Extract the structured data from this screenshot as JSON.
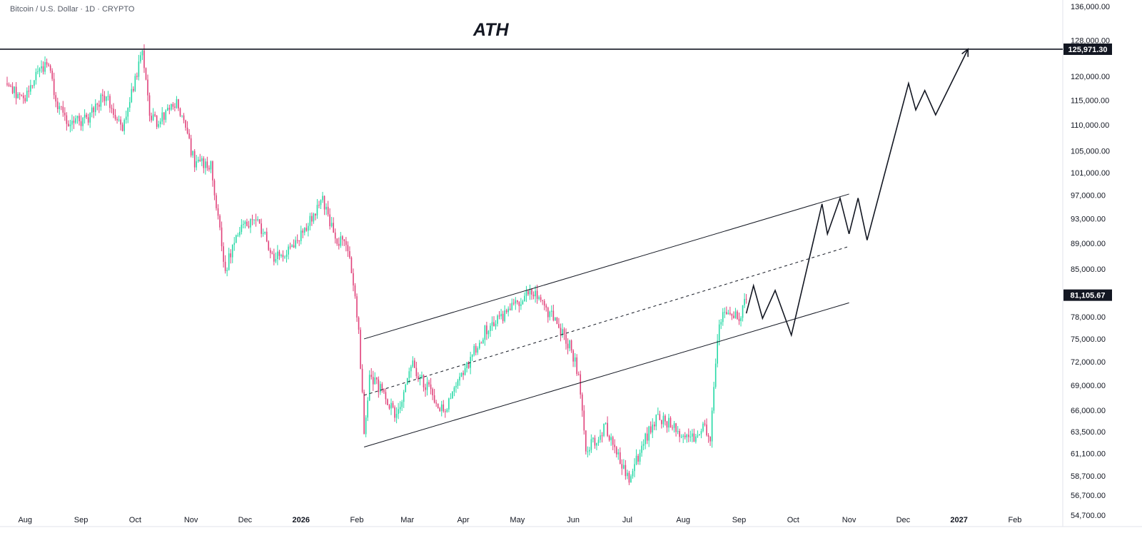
{
  "header": {
    "title": "Bitcoin / U.S. Dollar · 1D · CRYPTO"
  },
  "annotations": {
    "ath_label": "ATH"
  },
  "colors": {
    "up": "#26d9a6",
    "down": "#e0427a",
    "line": "#131722",
    "axis_border": "#e0e3eb",
    "background": "#ffffff"
  },
  "chart_data": {
    "type": "candlestick",
    "title": "",
    "grid": false,
    "y_ticks": [
      "136,000.00",
      "128,000.00",
      "120,000.00",
      "115,000.00",
      "110,000.00",
      "105,000.00",
      "101,000.00",
      "97,000.00",
      "93,000.00",
      "89,000.00",
      "85,000.00",
      "78,000.00",
      "75,000.00",
      "72,000.00",
      "69,000.00",
      "66,000.00",
      "63,500.00",
      "61,100.00",
      "58,700.00",
      "56,700.00",
      "54,700.00"
    ],
    "y_tick_values": [
      136000,
      128000,
      120000,
      115000,
      110000,
      105000,
      101000,
      97000,
      93000,
      89000,
      85000,
      78000,
      75000,
      72000,
      69000,
      66000,
      63500,
      61100,
      58700,
      56700,
      54700
    ],
    "ylim": [
      53000,
      138000
    ],
    "y_scale": "log",
    "x_ticks": [
      {
        "label": "Aug",
        "date": "2025-08-01",
        "bold": false
      },
      {
        "label": "Sep",
        "date": "2025-09-01",
        "bold": false
      },
      {
        "label": "Oct",
        "date": "2025-10-01",
        "bold": false
      },
      {
        "label": "Nov",
        "date": "2025-11-01",
        "bold": false
      },
      {
        "label": "Dec",
        "date": "2025-12-01",
        "bold": false
      },
      {
        "label": "2026",
        "date": "2026-01-01",
        "bold": true
      },
      {
        "label": "Feb",
        "date": "2026-02-01",
        "bold": false
      },
      {
        "label": "Mar",
        "date": "2026-03-01",
        "bold": false
      },
      {
        "label": "Apr",
        "date": "2026-04-01",
        "bold": false
      },
      {
        "label": "May",
        "date": "2026-05-01",
        "bold": false
      },
      {
        "label": "Jun",
        "date": "2026-06-01",
        "bold": false
      },
      {
        "label": "Jul",
        "date": "2026-07-01",
        "bold": false
      },
      {
        "label": "Aug",
        "date": "2026-08-01",
        "bold": false
      },
      {
        "label": "Sep",
        "date": "2026-09-01",
        "bold": false
      },
      {
        "label": "Oct",
        "date": "2026-10-01",
        "bold": false
      },
      {
        "label": "Nov",
        "date": "2026-11-01",
        "bold": false
      },
      {
        "label": "Dec",
        "date": "2026-12-01",
        "bold": false
      },
      {
        "label": "2027",
        "date": "2027-01-01",
        "bold": true
      },
      {
        "label": "Feb",
        "date": "2027-02-01",
        "bold": false
      }
    ],
    "xlim": [
      "2025-07-22",
      "2027-02-22"
    ],
    "ath_level": {
      "value": 125971.3,
      "label": "125,971.30"
    },
    "last_price": {
      "value": 81105.67,
      "label": "81,105.67"
    },
    "price_path": [
      [
        "2025-07-22",
        118500
      ],
      [
        "2025-08-01",
        115000
      ],
      [
        "2025-08-10",
        121000
      ],
      [
        "2025-08-14",
        123500
      ],
      [
        "2025-08-20",
        113500
      ],
      [
        "2025-08-27",
        110500
      ],
      [
        "2025-09-05",
        111000
      ],
      [
        "2025-09-15",
        116000
      ],
      [
        "2025-09-25",
        109500
      ],
      [
        "2025-10-02",
        119000
      ],
      [
        "2025-10-06",
        125500
      ],
      [
        "2025-10-10",
        112000
      ],
      [
        "2025-10-15",
        110500
      ],
      [
        "2025-10-25",
        114500
      ],
      [
        "2025-11-04",
        103000
      ],
      [
        "2025-11-13",
        102000
      ],
      [
        "2025-11-21",
        84500
      ],
      [
        "2025-11-27",
        91000
      ],
      [
        "2025-12-03",
        92500
      ],
      [
        "2025-12-10",
        92000
      ],
      [
        "2025-12-18",
        86500
      ],
      [
        "2025-12-25",
        87500
      ],
      [
        "2026-01-05",
        91500
      ],
      [
        "2026-01-14",
        96000
      ],
      [
        "2026-01-22",
        89500
      ],
      [
        "2026-01-28",
        88500
      ],
      [
        "2026-02-03",
        76000
      ],
      [
        "2026-02-06",
        63500
      ],
      [
        "2026-02-09",
        70000
      ],
      [
        "2026-02-15",
        68500
      ],
      [
        "2026-02-24",
        65000
      ],
      [
        "2026-03-04",
        72000
      ],
      [
        "2026-03-12",
        69000
      ],
      [
        "2026-03-22",
        66000
      ],
      [
        "2026-04-03",
        71000
      ],
      [
        "2026-04-14",
        76000
      ],
      [
        "2026-04-24",
        78000
      ],
      [
        "2026-05-04",
        80500
      ],
      [
        "2026-05-11",
        81500
      ],
      [
        "2026-05-20",
        78500
      ],
      [
        "2026-05-31",
        74000
      ],
      [
        "2026-06-05",
        70500
      ],
      [
        "2026-06-09",
        61500
      ],
      [
        "2026-06-20",
        64000
      ],
      [
        "2026-06-27",
        61000
      ],
      [
        "2026-07-03",
        58000
      ],
      [
        "2026-07-10",
        62000
      ],
      [
        "2026-07-18",
        65000
      ],
      [
        "2026-07-26",
        64500
      ],
      [
        "2026-08-05",
        62500
      ],
      [
        "2026-08-13",
        64000
      ],
      [
        "2026-08-17",
        63000
      ],
      [
        "2026-08-22",
        77000
      ],
      [
        "2026-08-26",
        79000
      ],
      [
        "2026-09-02",
        77500
      ],
      [
        "2026-09-05",
        81105
      ]
    ],
    "channel": {
      "upper": [
        [
          "2026-02-05",
          75000
        ],
        [
          "2026-11-01",
          97200
        ]
      ],
      "middle": [
        [
          "2026-02-05",
          67800
        ],
        [
          "2026-11-01",
          88500
        ]
      ],
      "lower": [
        [
          "2026-02-05",
          61800
        ],
        [
          "2026-11-01",
          80000
        ]
      ]
    },
    "projection_path": [
      [
        "2026-09-05",
        78500
      ],
      [
        "2026-09-09",
        82500
      ],
      [
        "2026-09-14",
        77800
      ],
      [
        "2026-09-21",
        81800
      ],
      [
        "2026-09-30",
        75500
      ],
      [
        "2026-10-17",
        95500
      ],
      [
        "2026-10-20",
        90500
      ],
      [
        "2026-10-27",
        96500
      ],
      [
        "2026-11-01",
        90500
      ],
      [
        "2026-11-06",
        96500
      ],
      [
        "2026-11-11",
        89500
      ],
      [
        "2026-12-04",
        118500
      ],
      [
        "2026-12-08",
        113000
      ],
      [
        "2026-12-13",
        117000
      ],
      [
        "2026-12-19",
        112000
      ],
      [
        "2027-01-06",
        126000
      ]
    ]
  }
}
